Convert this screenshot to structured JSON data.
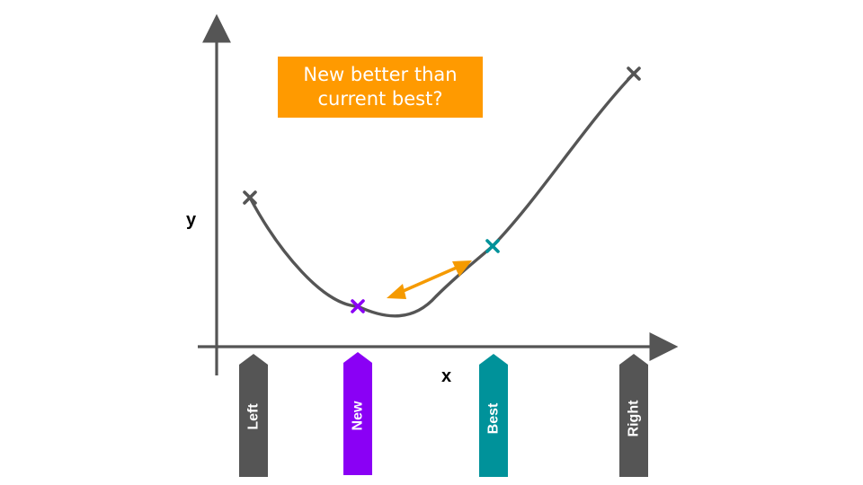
{
  "callout": {
    "text": "New better than current best?",
    "color": "#FF9A00"
  },
  "axes": {
    "x_label": "x",
    "y_label": "y",
    "color": "#555555"
  },
  "curve_color": "#555555",
  "comparison_arrow_color": "#F59A00",
  "markers": [
    {
      "id": "left",
      "label": "Left",
      "color": "#555555"
    },
    {
      "id": "new",
      "label": "New",
      "color": "#8A00F5"
    },
    {
      "id": "best",
      "label": "Best",
      "color": "#00929A"
    },
    {
      "id": "right",
      "label": "Right",
      "color": "#555555"
    }
  ]
}
